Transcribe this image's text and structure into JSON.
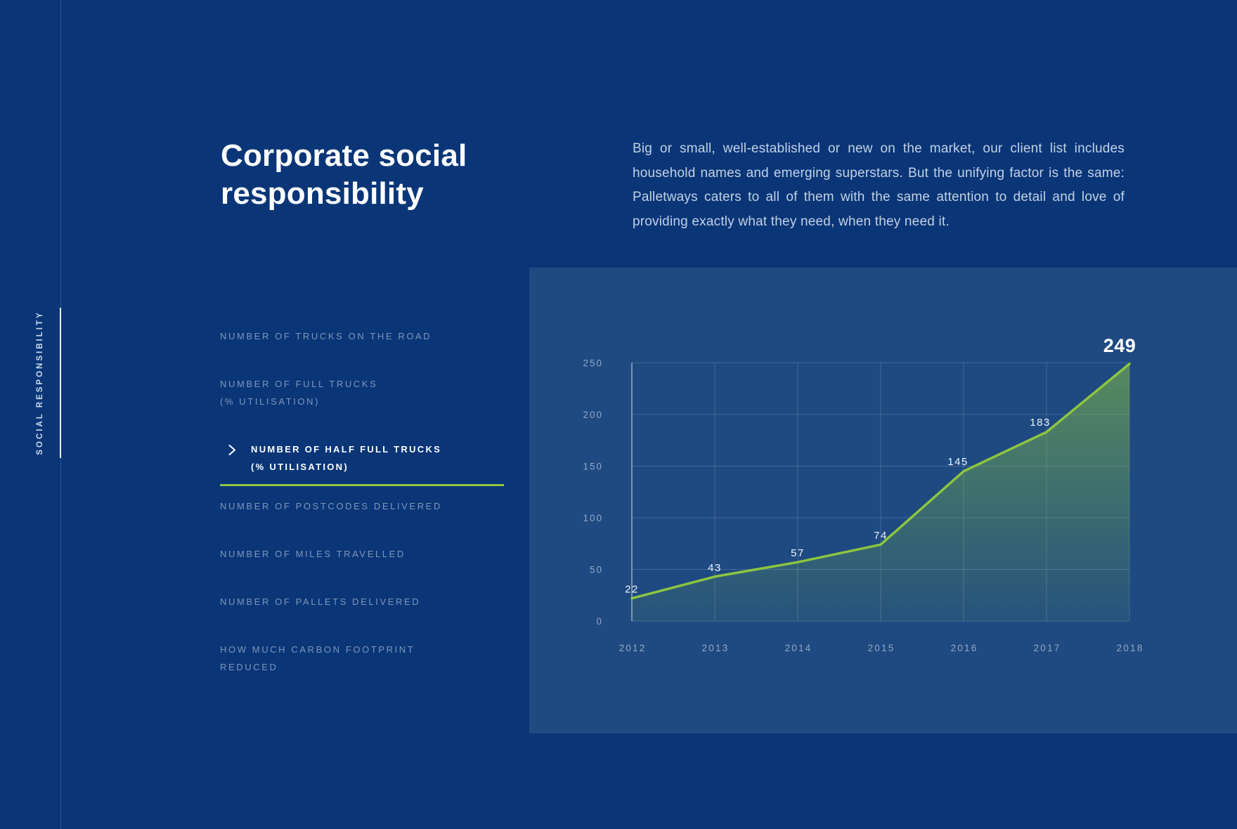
{
  "page": {
    "rail_label": "SOCIAL RESPONSIBILITY",
    "title": "Corporate social\nresponsibility",
    "intro": "Big or small, well-established or new on the market, our client list includes household names and emerging superstars. But the unifying factor is the same: Palletways caters to all of them with the same attention to detail and love of providing exactly what they need, when they need it."
  },
  "menu": {
    "items": [
      {
        "label": "NUMBER OF TRUCKS ON THE ROAD",
        "active": false
      },
      {
        "label": "NUMBER OF FULL TRUCKS\n(% UTILISATION)",
        "active": false
      },
      {
        "label": "NUMBER OF HALF FULL TRUCKS\n(% UTILISATION)",
        "active": true
      },
      {
        "label": "NUMBER OF POSTCODES DELIVERED",
        "active": false
      },
      {
        "label": "NUMBER OF MILES TRAVELLED",
        "active": false
      },
      {
        "label": "NUMBER OF PALLETS DELIVERED",
        "active": false
      },
      {
        "label": "HOW MUCH CARBON FOOTPRINT\nREDUCED",
        "active": false
      }
    ]
  },
  "chart_data": {
    "type": "area",
    "title": "",
    "xlabel": "",
    "ylabel": "",
    "categories": [
      "2012",
      "2013",
      "2014",
      "2015",
      "2016",
      "2017",
      "2018"
    ],
    "series": [
      {
        "name": "Number of half full trucks (% utilisation)",
        "values": [
          22,
          43,
          57,
          74,
          145,
          183,
          249
        ]
      }
    ],
    "point_labels": [
      "22",
      "43",
      "57",
      "74",
      "145",
      "183",
      "249"
    ],
    "emphasized_label": "249",
    "ylim": [
      0,
      250
    ],
    "yticks": [
      0,
      50,
      100,
      150,
      200,
      250
    ],
    "grid": true,
    "legend": "none"
  },
  "colors": {
    "background": "#0a3678",
    "panel": "#1e4a81",
    "accent_green": "#8dc63f",
    "grid": "rgba(255,255,255,0.16)",
    "axis": "rgba(255,255,255,0.5)",
    "tick_text": "#93a8c9",
    "value_text": "#eef4fa"
  }
}
